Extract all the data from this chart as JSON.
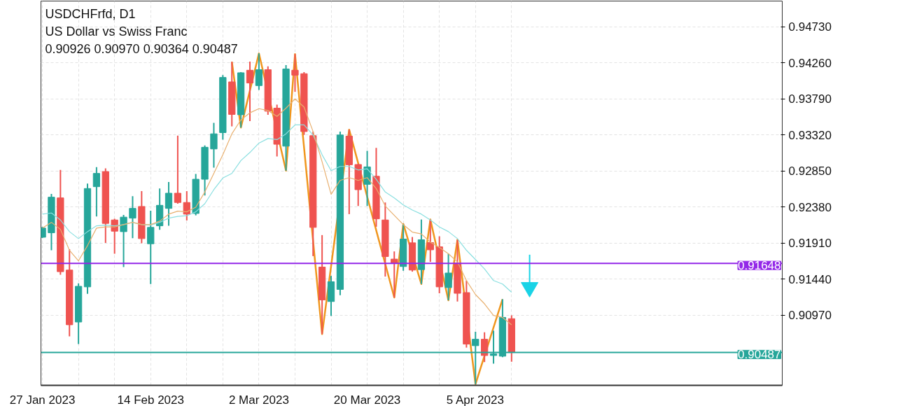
{
  "chart_data": {
    "type": "candlestick",
    "title": "USDCHFrfd, D1",
    "subtitle": "US Dollar vs Swiss Franc",
    "annotations": [
      "0.90926 0.90970 0.90364 0.90487"
    ],
    "categories": [
      "27 Jan 2023",
      null,
      null,
      null,
      null,
      null,
      null,
      null,
      null,
      null,
      null,
      null,
      "14 Feb 2023",
      null,
      null,
      null,
      null,
      null,
      null,
      null,
      null,
      null,
      null,
      null,
      "2 Mar 2023",
      null,
      null,
      null,
      null,
      null,
      null,
      null,
      null,
      null,
      null,
      null,
      "20 Mar 2023",
      null,
      null,
      null,
      null,
      null,
      null,
      null,
      null,
      null,
      null,
      null,
      "5 Apr 2023",
      null,
      null,
      null,
      null
    ],
    "ohlc": [
      [
        0.91988,
        0.92125,
        0.91979,
        0.92107
      ],
      [
        0.92046,
        0.92553,
        0.91818,
        0.9251
      ],
      [
        0.92501,
        0.92865,
        0.91499,
        0.91539
      ],
      [
        0.9156,
        0.91833,
        0.90695,
        0.90847
      ],
      [
        0.90883,
        0.91387,
        0.90595,
        0.91348
      ],
      [
        0.91341,
        0.92687,
        0.9125,
        0.92623
      ],
      [
        0.92647,
        0.92902,
        0.92259,
        0.9282
      ],
      [
        0.92844,
        0.92887,
        0.91915,
        0.92168
      ],
      [
        0.92213,
        0.92228,
        0.91772,
        0.92067
      ],
      [
        0.92061,
        0.9228,
        0.91599,
        0.9225
      ],
      [
        0.92237,
        0.92523,
        0.91976,
        0.92364
      ],
      [
        0.92389,
        0.92589,
        0.91909,
        0.9197
      ],
      [
        0.91903,
        0.92334,
        0.91378,
        0.92116
      ],
      [
        0.92137,
        0.92623,
        0.92086,
        0.92404
      ],
      [
        0.92364,
        0.92708,
        0.92137,
        0.92562
      ],
      [
        0.92562,
        0.93312,
        0.92425,
        0.92441
      ],
      [
        0.92441,
        0.92589,
        0.92207,
        0.92289
      ],
      [
        0.92298,
        0.92814,
        0.92273,
        0.92744
      ],
      [
        0.92744,
        0.93184,
        0.92532,
        0.93161
      ],
      [
        0.93139,
        0.93479,
        0.92896,
        0.93336
      ],
      [
        0.93352,
        0.94101,
        0.93261,
        0.94071
      ],
      [
        0.94013,
        0.94275,
        0.93434,
        0.93589
      ],
      [
        0.93585,
        0.94141,
        0.93418,
        0.94132
      ],
      [
        0.94165,
        0.94277,
        0.93503,
        0.93999
      ],
      [
        0.93965,
        0.94384,
        0.93907,
        0.94172
      ],
      [
        0.94172,
        0.94217,
        0.93585,
        0.93631
      ],
      [
        0.93671,
        0.93716,
        0.93042,
        0.932
      ],
      [
        0.93175,
        0.94232,
        0.92856,
        0.94181
      ],
      [
        0.94165,
        0.94375,
        0.93883,
        0.94101
      ],
      [
        0.9412,
        0.94141,
        0.93321,
        0.93366
      ],
      [
        0.93312,
        0.93366,
        0.91742,
        0.92116
      ],
      [
        0.91599,
        0.92016,
        0.90725,
        0.91171
      ],
      [
        0.9115,
        0.91484,
        0.90962,
        0.91408
      ],
      [
        0.91308,
        0.93366,
        0.91232,
        0.93321
      ],
      [
        0.93306,
        0.93391,
        0.92289,
        0.92933
      ],
      [
        0.92936,
        0.92945,
        0.92395,
        0.92608
      ],
      [
        0.92678,
        0.93115,
        0.92395,
        0.92905
      ],
      [
        0.92783,
        0.93154,
        0.92125,
        0.92228
      ],
      [
        0.92213,
        0.92441,
        0.91475,
        0.91736
      ],
      [
        0.91703,
        0.91803,
        0.91202,
        0.91645
      ],
      [
        0.91606,
        0.92161,
        0.91551,
        0.91964
      ],
      [
        0.91915,
        0.91991,
        0.91539,
        0.9156
      ],
      [
        0.91566,
        0.92219,
        0.91378,
        0.91955
      ],
      [
        0.91918,
        0.92219,
        0.91667,
        0.91824
      ],
      [
        0.91863,
        0.92,
        0.91257,
        0.91341
      ],
      [
        0.91332,
        0.91772,
        0.91166,
        0.91521
      ],
      [
        0.91651,
        0.91955,
        0.9115,
        0.91257
      ],
      [
        0.91266,
        0.91423,
        0.90549,
        0.90595
      ],
      [
        0.90574,
        0.90756,
        0.90073,
        0.90658
      ],
      [
        0.90658,
        0.90749,
        0.9036,
        0.90446
      ],
      [
        0.90446,
        0.9077,
        0.90339,
        0.90467
      ],
      [
        0.90437,
        0.9118,
        0.90425,
        0.90943
      ],
      [
        0.90926,
        0.9097,
        0.90364,
        0.90487
      ]
    ],
    "colors": [
      "#26a69a",
      "#26a69a",
      "#ef5350",
      "#ef5350",
      "#26a69a",
      "#26a69a",
      "#26a69a",
      "#ef5350",
      "#ef5350",
      "#26a69a",
      "#26a69a",
      "#ef5350",
      "#26a69a",
      "#26a69a",
      "#26a69a",
      "#ef5350",
      "#ef5350",
      "#26a69a",
      "#26a69a",
      "#26a69a",
      "#26a69a",
      "#ef5350",
      "#26a69a",
      "#ef5350",
      "#26a69a",
      "#ef5350",
      "#ef5350",
      "#26a69a",
      "#ef5350",
      "#ef5350",
      "#ef5350",
      "#ef5350",
      "#26a69a",
      "#26a69a",
      "#ef5350",
      "#ef5350",
      "#26a69a",
      "#ef5350",
      "#ef5350",
      "#ef5350",
      "#26a69a",
      "#ef5350",
      "#26a69a",
      "#ef5350",
      "#ef5350",
      "#26a69a",
      "#ef5350",
      "#ef5350",
      "#26a69a",
      "#ef5350",
      "#26a69a",
      "#26a69a",
      "#ef5350"
    ],
    "series": [
      {
        "type": "line",
        "color": "#e8b070",
        "values": [
          0.92107,
          0.92182,
          0.92091,
          0.91818,
          0.91681,
          0.91879,
          0.92107,
          0.92122,
          0.92122,
          0.92152,
          0.92182,
          0.92152,
          0.92152,
          0.92198,
          0.92289,
          0.92328,
          0.92319,
          0.9238,
          0.92577,
          0.9282,
          0.93063,
          0.93336,
          0.93518,
          0.9361,
          0.93664,
          0.9364,
          0.93564,
          0.93671,
          0.93792,
          0.93685,
          0.93366,
          0.92972,
          0.92547,
          0.92729,
          0.92765,
          0.92729,
          0.92765,
          0.92623,
          0.92395,
          0.92273,
          0.92152,
          0.92055,
          0.92031,
          0.91924,
          0.91854,
          0.91772,
          0.91667,
          0.91423,
          0.91241,
          0.9112,
          0.90968,
          0.90943,
          0.90847
        ]
      },
      {
        "type": "line",
        "color": "#8adfe0",
        "values": [
          0.92289,
          0.92304,
          0.92213,
          0.92061,
          0.9197,
          0.92061,
          0.92137,
          0.92146,
          0.92137,
          0.92152,
          0.92182,
          0.92152,
          0.92146,
          0.92182,
          0.92237,
          0.92259,
          0.92268,
          0.92319,
          0.92425,
          0.92608,
          0.9276,
          0.9282,
          0.92987,
          0.93093,
          0.93215,
          0.93275,
          0.93261,
          0.93336,
          0.93452,
          0.93452,
          0.93321,
          0.93063,
          0.92856,
          0.92911,
          0.92911,
          0.92865,
          0.92881,
          0.92744,
          0.92577,
          0.92501,
          0.9241,
          0.92343,
          0.92289,
          0.92213,
          0.92122,
          0.92061,
          0.9197,
          0.91818,
          0.91697,
          0.91576,
          0.91423,
          0.91378,
          0.91271
        ]
      },
      {
        "type": "line",
        "color": "#f0961e",
        "values": [
          null,
          null,
          null,
          null,
          null,
          null,
          null,
          null,
          null,
          null,
          null,
          null,
          null,
          null,
          null,
          null,
          null,
          null,
          null,
          null,
          null,
          0.94275,
          0.93418,
          null,
          0.94384,
          null,
          null,
          0.92856,
          0.94375,
          null,
          null,
          0.90725,
          null,
          null,
          0.93391,
          null,
          null,
          null,
          null,
          0.91202,
          0.92161,
          null,
          0.91378,
          0.92219,
          null,
          0.91166,
          0.91955,
          null,
          0.90073,
          null,
          null,
          0.9118,
          null
        ]
      }
    ],
    "ylim": [
      0.90057,
      0.95067
    ],
    "yticks": [
      {
        "value": 0.9473,
        "label": "0.94730"
      },
      {
        "value": 0.9426,
        "label": "0.94260"
      },
      {
        "value": 0.9379,
        "label": "0.93790"
      },
      {
        "value": 0.9332,
        "label": "0.93320"
      },
      {
        "value": 0.9285,
        "label": "0.92850"
      },
      {
        "value": 0.9238,
        "label": "0.92380"
      },
      {
        "value": 0.9191,
        "label": "0.91910"
      },
      {
        "value": 0.9144,
        "label": "0.91440"
      },
      {
        "value": 0.9097,
        "label": "0.90970"
      }
    ],
    "ref_lines": [
      {
        "axis": "y",
        "value": 0.91648,
        "label": "0.91648",
        "color": "#9327e8"
      },
      {
        "axis": "y",
        "value": 0.90487,
        "label": "0.90487",
        "color": "#26a69a"
      }
    ],
    "grid": true
  }
}
